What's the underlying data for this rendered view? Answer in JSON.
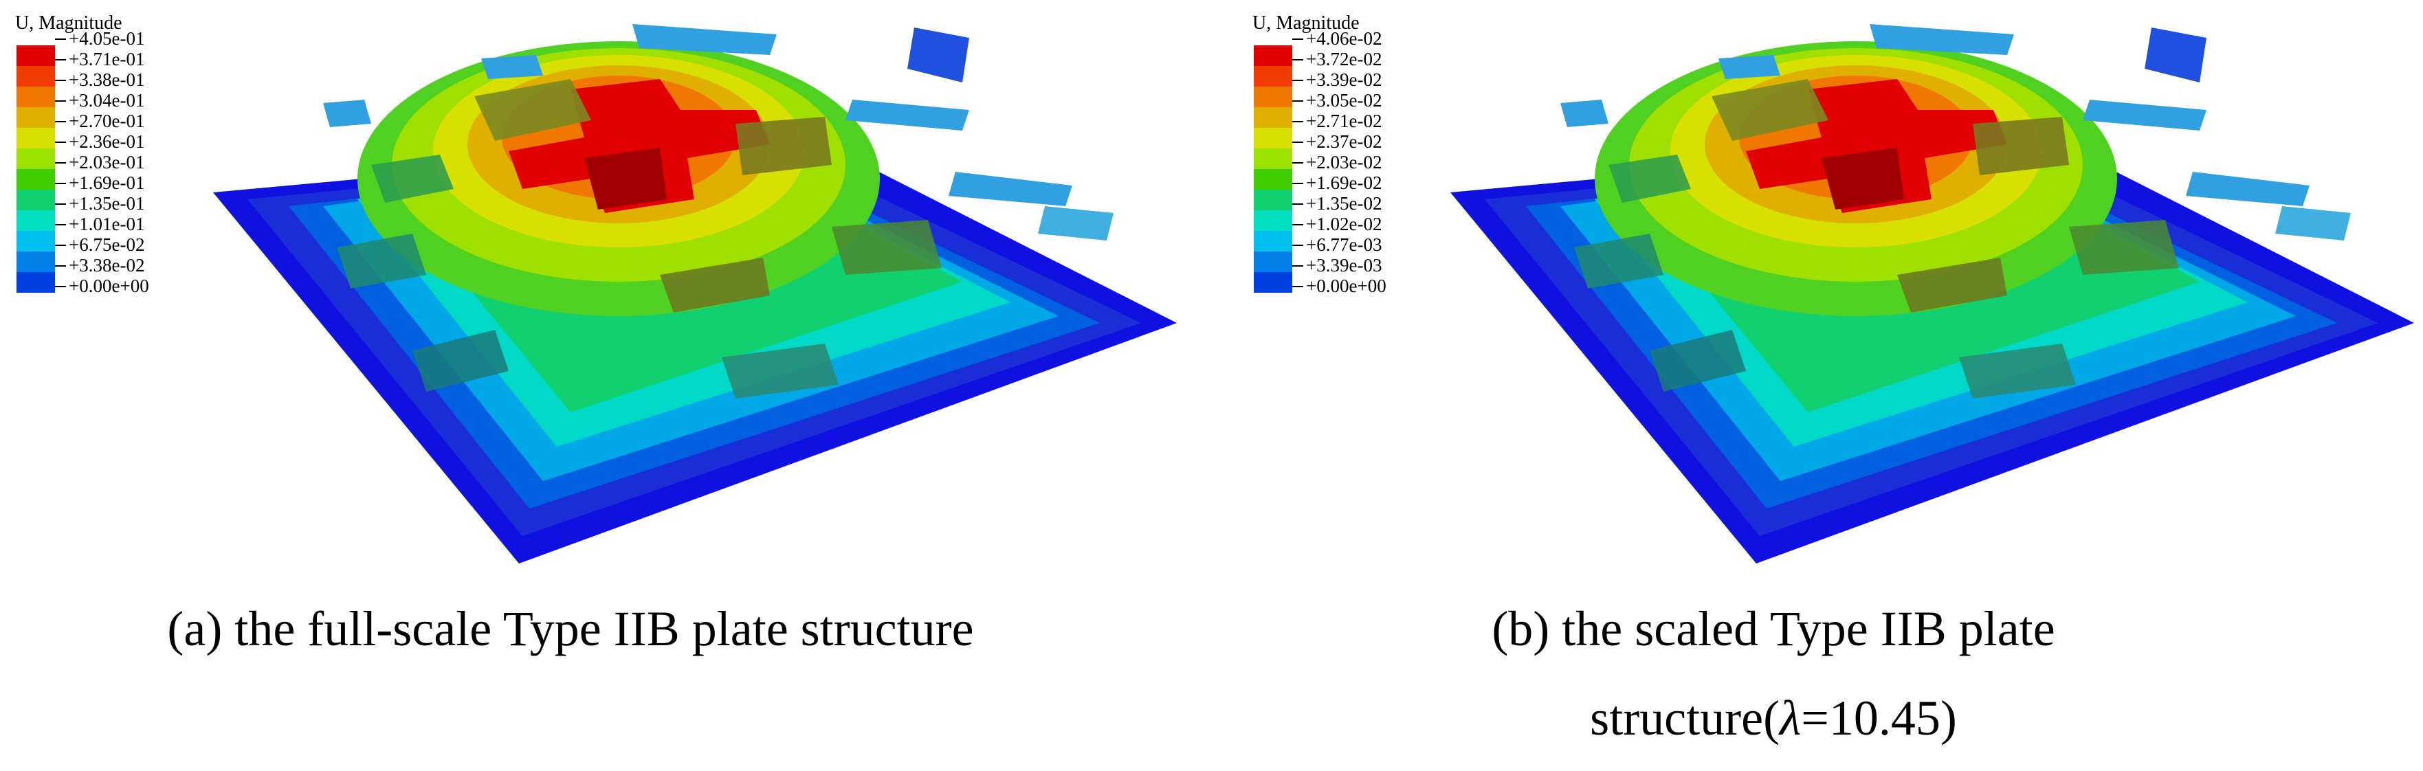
{
  "panels": [
    {
      "legend_title": "U, Magnitude",
      "legend_values": [
        "+4.05e-01",
        "+3.71e-01",
        "+3.38e-01",
        "+3.04e-01",
        "+2.70e-01",
        "+2.36e-01",
        "+2.03e-01",
        "+1.69e-01",
        "+1.35e-01",
        "+1.01e-01",
        "+6.75e-02",
        "+3.38e-02",
        "+0.00e+00"
      ],
      "caption": "(a) the full-scale Type IIB plate structure"
    },
    {
      "legend_title": "U, Magnitude",
      "legend_values": [
        "+4.06e-02",
        "+3.72e-02",
        "+3.39e-02",
        "+3.05e-02",
        "+2.71e-02",
        "+2.37e-02",
        "+2.03e-02",
        "+1.69e-02",
        "+1.35e-02",
        "+1.02e-02",
        "+6.77e-03",
        "+3.39e-03",
        "+0.00e+00"
      ],
      "caption_line1": "(b) the scaled Type IIB plate",
      "caption_line2_prefix": "structure(",
      "caption_symbol": "λ",
      "caption_line2_suffix": "=10.45)"
    }
  ],
  "colormap": [
    "#e00000",
    "#f03c00",
    "#f07800",
    "#e0b000",
    "#d8e000",
    "#9ce000",
    "#40d000",
    "#10d070",
    "#00e0c0",
    "#00c0f0",
    "#0080e8",
    "#0040e0"
  ],
  "plate_colors": {
    "base": "#1010e0",
    "rim": "#1a3ad8",
    "stiffener_dark": "#4a6a2a"
  }
}
